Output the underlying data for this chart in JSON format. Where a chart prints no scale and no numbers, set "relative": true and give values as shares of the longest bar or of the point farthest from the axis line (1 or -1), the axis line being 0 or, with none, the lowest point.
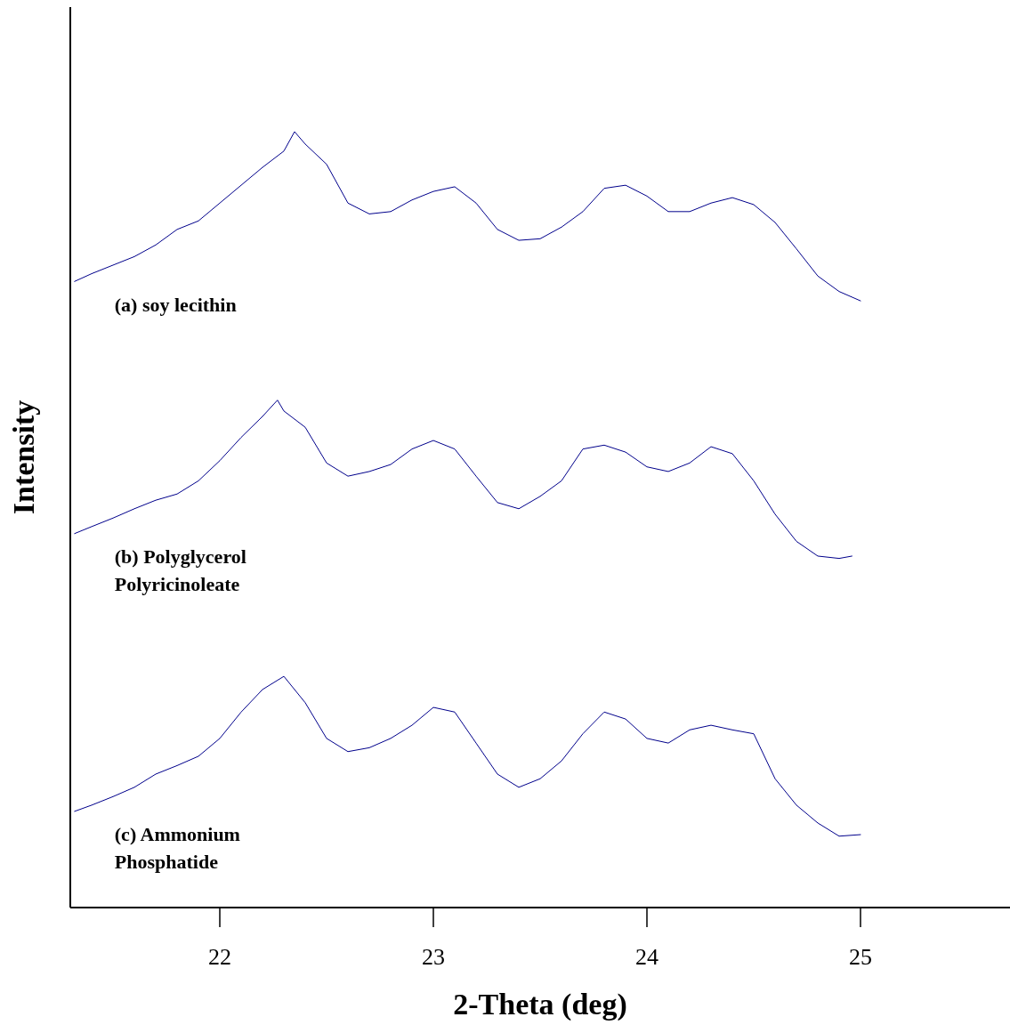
{
  "chart_data": {
    "type": "line",
    "relative": true,
    "xlabel": "2-Theta (deg)",
    "ylabel": "Intensity",
    "xlim": [
      21.3,
      25.7
    ],
    "xticks": [
      22,
      23,
      24,
      25
    ],
    "tick_labels": "x",
    "line_style": "solid",
    "series": [
      {
        "name": "(a) soy lecithin",
        "color": "#00008b",
        "x": [
          21.32,
          21.4,
          21.5,
          21.6,
          21.7,
          21.8,
          21.9,
          22.0,
          22.1,
          22.2,
          22.3,
          22.35,
          22.4,
          22.5,
          22.6,
          22.7,
          22.8,
          22.9,
          23.0,
          23.1,
          23.2,
          23.3,
          23.4,
          23.5,
          23.6,
          23.7,
          23.8,
          23.9,
          24.0,
          24.1,
          24.2,
          24.3,
          24.4,
          24.5,
          24.6,
          24.7,
          24.8,
          24.9,
          25.0
        ],
        "values": [
          0.807,
          0.817,
          0.828,
          0.839,
          0.854,
          0.874,
          0.885,
          0.908,
          0.931,
          0.954,
          0.975,
          1.0,
          0.984,
          0.958,
          0.908,
          0.894,
          0.897,
          0.912,
          0.923,
          0.929,
          0.908,
          0.874,
          0.86,
          0.862,
          0.877,
          0.897,
          0.927,
          0.931,
          0.917,
          0.897,
          0.897,
          0.908,
          0.915,
          0.906,
          0.883,
          0.849,
          0.814,
          0.794,
          0.782
        ]
      },
      {
        "name": "(b) Polyglycerol Polyricinoleate",
        "color": "#00008b",
        "x": [
          21.32,
          21.4,
          21.5,
          21.6,
          21.7,
          21.8,
          21.9,
          22.0,
          22.1,
          22.2,
          22.27,
          22.3,
          22.4,
          22.5,
          22.6,
          22.7,
          22.8,
          22.9,
          23.0,
          23.1,
          23.2,
          23.3,
          23.4,
          23.5,
          23.6,
          23.7,
          23.8,
          23.9,
          24.0,
          24.1,
          24.2,
          24.3,
          24.4,
          24.5,
          24.6,
          24.7,
          24.8,
          24.9,
          24.96
        ],
        "values": [
          0.482,
          0.491,
          0.502,
          0.514,
          0.525,
          0.533,
          0.55,
          0.576,
          0.606,
          0.633,
          0.654,
          0.64,
          0.619,
          0.573,
          0.556,
          0.562,
          0.571,
          0.591,
          0.602,
          0.591,
          0.556,
          0.522,
          0.514,
          0.53,
          0.55,
          0.591,
          0.596,
          0.587,
          0.568,
          0.562,
          0.573,
          0.594,
          0.585,
          0.55,
          0.507,
          0.472,
          0.453,
          0.45,
          0.453
        ]
      },
      {
        "name": "(c) Ammonium Phosphatide",
        "color": "#00008b",
        "x": [
          21.32,
          21.4,
          21.5,
          21.6,
          21.7,
          21.8,
          21.9,
          22.0,
          22.1,
          22.2,
          22.3,
          22.4,
          22.5,
          22.6,
          22.7,
          22.8,
          22.9,
          23.0,
          23.1,
          23.2,
          23.3,
          23.4,
          23.5,
          23.6,
          23.7,
          23.8,
          23.9,
          24.0,
          24.1,
          24.2,
          24.3,
          24.4,
          24.5,
          24.6,
          24.7,
          24.8,
          24.9,
          25.0
        ],
        "values": [
          0.124,
          0.132,
          0.143,
          0.155,
          0.172,
          0.183,
          0.195,
          0.218,
          0.252,
          0.281,
          0.298,
          0.264,
          0.218,
          0.201,
          0.206,
          0.218,
          0.235,
          0.258,
          0.252,
          0.212,
          0.172,
          0.155,
          0.166,
          0.189,
          0.224,
          0.252,
          0.243,
          0.218,
          0.212,
          0.229,
          0.235,
          0.229,
          0.224,
          0.166,
          0.132,
          0.109,
          0.092,
          0.094
        ]
      }
    ]
  }
}
